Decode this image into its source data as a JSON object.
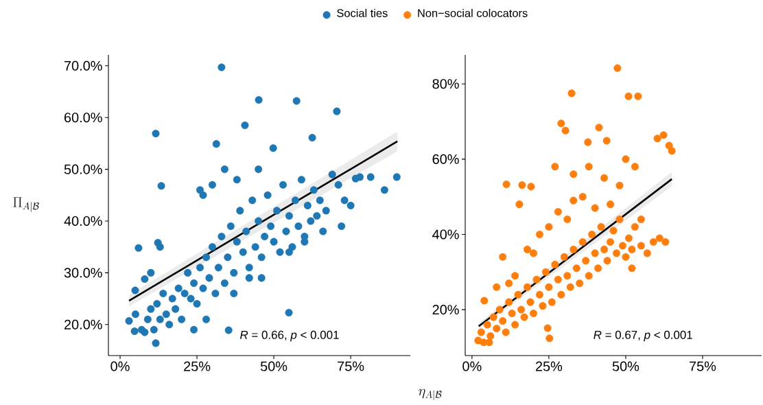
{
  "chart_data": [
    {
      "type": "scatter",
      "xlabel": "\\eta_{A|\\mathcal{B}}",
      "ylabel": "\\Pi_{A|\\mathcal{B}}",
      "legend": "top",
      "xlim": [
        -3.8,
        94.4
      ],
      "ylim": [
        14,
        72.1
      ],
      "xticks": [
        {
          "value": 0,
          "label": "0%"
        },
        {
          "value": 25,
          "label": "25%"
        },
        {
          "value": 50,
          "label": "50%"
        },
        {
          "value": 75,
          "label": "75%"
        }
      ],
      "yticks": [
        {
          "value": 20,
          "label": "20.0%"
        },
        {
          "value": 30,
          "label": "30.0%"
        },
        {
          "value": 40,
          "label": "40.0%"
        },
        {
          "value": 50,
          "label": "50.0%"
        },
        {
          "value": 60,
          "label": "60.0%"
        },
        {
          "value": 70,
          "label": "70.0%"
        }
      ],
      "annotations": [
        "*R* = 0.66, *p* < 0.001"
      ],
      "series": [
        {
          "name": "Social ties",
          "marker": "circle",
          "color": "#1f77b4",
          "x": [
            33.0,
            45.1,
            57.4,
            70.5,
            40.6,
            11.6,
            31.3,
            62.5,
            49.8,
            13.4,
            76.6,
            78,
            81.5,
            90,
            86,
            54.9,
            35.3,
            11.6,
            2.9,
            4.7,
            12.3,
            4.9,
            5,
            7,
            8,
            9,
            10,
            11,
            12,
            13,
            14,
            15,
            16,
            17,
            18,
            19,
            20,
            21,
            22,
            23,
            24,
            25,
            26,
            27,
            28,
            29,
            30,
            31,
            32,
            33,
            34,
            35,
            36,
            37,
            38,
            39,
            40,
            41,
            42,
            43,
            44,
            45,
            46,
            47,
            48,
            49,
            50,
            51,
            52,
            53,
            54,
            55,
            56,
            57,
            58,
            59,
            60,
            61,
            62,
            63,
            64,
            65,
            67,
            69,
            71,
            73,
            75,
            72,
            66,
            13,
            6,
            10,
            8,
            26,
            30,
            34,
            38,
            45,
            27,
            42,
            46,
            37,
            28,
            24,
            55,
            60
          ],
          "values": [
            69.7,
            63.4,
            63.2,
            61.2,
            58.5,
            56.9,
            54.9,
            56.1,
            54.1,
            46.8,
            48.2,
            48.5,
            48.5,
            48.5,
            46.0,
            22.3,
            18.9,
            16.4,
            20.7,
            18.7,
            35.8,
            26.6,
            22,
            19,
            18.5,
            21,
            23,
            19,
            24,
            21,
            26,
            22,
            20,
            25,
            23,
            27,
            21,
            26,
            30,
            25,
            28,
            24,
            31,
            27,
            33,
            29,
            35,
            26,
            31,
            37,
            28,
            33,
            39,
            30,
            36,
            42,
            34,
            38,
            29,
            44,
            35,
            40,
            33,
            37,
            45,
            39,
            36,
            42,
            34,
            47,
            38,
            41,
            35,
            44,
            39,
            48,
            37,
            43,
            40,
            46,
            41,
            44,
            42,
            49,
            47,
            44,
            43,
            39,
            38,
            35,
            34.8,
            30,
            28.8,
            46,
            47,
            50,
            48,
            50,
            45,
            31,
            29,
            26,
            21,
            19,
            34,
            36
          ]
        },
        {
          "type": "line",
          "marker": "none",
          "color": "#000000",
          "x": [
            2.9,
            90.2
          ],
          "values": [
            24.6,
            55.4
          ],
          "lower": [
            23.5,
            53.5
          ],
          "upper": [
            25.7,
            57.3
          ]
        }
      ]
    },
    {
      "type": "scatter",
      "legend": "top",
      "xlim": [
        -2.2,
        94.2
      ],
      "ylim": [
        7.8,
        87.7
      ],
      "xticks": [
        {
          "value": 0,
          "label": "0%"
        },
        {
          "value": 25,
          "label": "25%"
        },
        {
          "value": 50,
          "label": "50%"
        },
        {
          "value": 75,
          "label": "75%"
        }
      ],
      "yticks": [
        {
          "value": 20,
          "label": "20%"
        },
        {
          "value": 40,
          "label": "40%"
        },
        {
          "value": 60,
          "label": "60%"
        },
        {
          "value": 80,
          "label": "80%"
        }
      ],
      "annotations": [
        "*R* = 0.67, *p* < 0.001"
      ],
      "series": [
        {
          "name": "Non−social colocators",
          "marker": "circle",
          "color": "#ff7f0e",
          "x": [
            47.3,
            32.4,
            50.9,
            54.0,
            29.0,
            30.4,
            41.3,
            43.8,
            37.7,
            62.3,
            60.3,
            64.1,
            65.0,
            11.2,
            16.3,
            19.2,
            15.4,
            62.9,
            2.0,
            3.8,
            5.6,
            25.2,
            24.6,
            4.0,
            3,
            5,
            6,
            7,
            8,
            9,
            10,
            11,
            12,
            13,
            14,
            15,
            16,
            17,
            18,
            19,
            20,
            21,
            22,
            23,
            24,
            25,
            26,
            27,
            28,
            29,
            30,
            31,
            32,
            33,
            34,
            35,
            36,
            37,
            38,
            39,
            40,
            41,
            42,
            43,
            44,
            45,
            46,
            47,
            48,
            49,
            50,
            51,
            52,
            53,
            55,
            57,
            59,
            61,
            12,
            8,
            14,
            10,
            18,
            22,
            25,
            28,
            31,
            33,
            36,
            40,
            43,
            45,
            48,
            50,
            53,
            38,
            33,
            27,
            55,
            52,
            20
          ],
          "values": [
            84.2,
            77.5,
            76.7,
            76.7,
            69.5,
            67.6,
            68.4,
            64.9,
            64.5,
            66.4,
            65.5,
            63.6,
            62.2,
            53.3,
            53.1,
            52.7,
            48.0,
            38.0,
            11.8,
            11.3,
            11.3,
            12.4,
            15.1,
            22.4,
            14,
            16,
            13,
            18,
            15,
            20,
            17,
            14,
            22,
            19,
            16,
            24,
            20,
            18,
            26,
            22,
            19,
            28,
            24,
            21,
            30,
            26,
            22,
            32,
            28,
            24,
            34,
            29,
            26,
            36,
            31,
            27,
            38,
            33,
            29,
            40,
            35,
            31,
            42,
            36,
            33,
            38,
            41,
            35,
            44,
            37,
            34,
            39,
            36,
            42,
            37,
            35,
            38,
            39,
            27,
            26,
            29,
            34,
            36,
            40,
            42,
            46,
            44,
            49,
            50,
            47,
            55,
            48,
            53,
            60,
            58,
            58,
            56,
            58,
            44,
            31,
            35
          ]
        },
        {
          "type": "line",
          "marker": "none",
          "color": "#000000",
          "x": [
            2.2,
            65.0
          ],
          "values": [
            15.6,
            54.7
          ],
          "lower": [
            14.8,
            52.8
          ],
          "upper": [
            16.4,
            56.6
          ]
        }
      ]
    }
  ]
}
